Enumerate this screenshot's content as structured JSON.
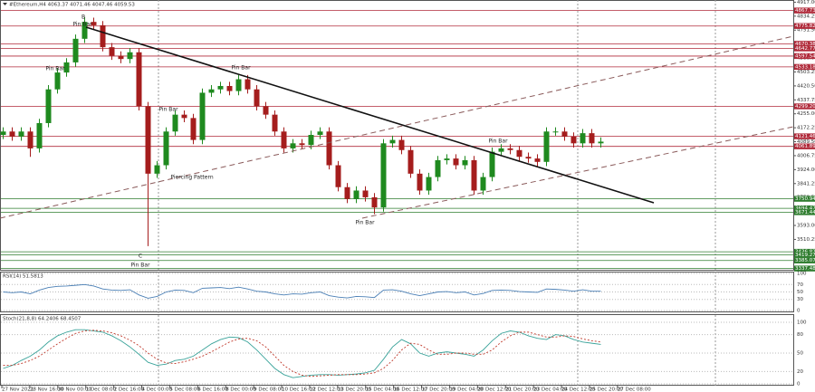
{
  "chart_data": {
    "type": "candlestick",
    "title": "#Ethereum,H4 4063.37 4071.46 4047.46 4059.53",
    "up_color": "#1f8a1f",
    "down_color": "#a51d1d",
    "open": [
      4130,
      4150,
      4120,
      4150,
      4050,
      4200,
      4400,
      4500,
      4560,
      4700,
      4800,
      4780,
      4650,
      4600,
      4580,
      4620,
      4300,
      3900,
      3950,
      4150,
      4250,
      4230,
      4100,
      4380,
      4400,
      4420,
      4390,
      4460,
      4400,
      4300,
      4250,
      4150,
      4050,
      4080,
      4070,
      4130,
      4150,
      3950,
      3820,
      3750,
      3800,
      3760,
      3700,
      4080,
      4100,
      4040,
      3900,
      3800,
      3880,
      3980,
      3990,
      3950,
      3980,
      3800,
      3880,
      4030,
      4050,
      4040,
      4000,
      3990,
      3970,
      4150,
      4150,
      4120,
      4080,
      4140,
      4080
    ],
    "high": [
      4175,
      4175,
      4175,
      4175,
      4225,
      4425,
      4525,
      4585,
      4725,
      4830,
      4825,
      4805,
      4675,
      4625,
      4645,
      4645,
      4325,
      3975,
      4175,
      4275,
      4275,
      4255,
      4405,
      4425,
      4445,
      4445,
      4485,
      4485,
      4425,
      4325,
      4275,
      4175,
      4105,
      4105,
      4155,
      4175,
      4175,
      3975,
      3845,
      3825,
      3825,
      3785,
      4105,
      4125,
      4125,
      4065,
      3925,
      3905,
      4005,
      4015,
      4015,
      4005,
      4005,
      3905,
      4055,
      4075,
      4075,
      4065,
      4025,
      4015,
      4175,
      4175,
      4175,
      4145,
      4165,
      4165,
      4115
    ],
    "low": [
      4105,
      4095,
      4095,
      4000,
      4025,
      4175,
      4375,
      4475,
      4535,
      4675,
      4755,
      4625,
      4575,
      4555,
      4555,
      4275,
      3470,
      3875,
      3925,
      4125,
      4205,
      4075,
      4075,
      4355,
      4375,
      4365,
      4365,
      4375,
      4275,
      4225,
      4125,
      4025,
      4025,
      4045,
      4045,
      4105,
      3925,
      3795,
      3725,
      3725,
      3735,
      3660,
      3675,
      4055,
      4015,
      3875,
      3775,
      3775,
      3855,
      3955,
      3925,
      3925,
      3775,
      3775,
      3855,
      4005,
      4015,
      3975,
      3965,
      3945,
      3945,
      4125,
      4095,
      4055,
      4055,
      4055,
      4055
    ],
    "close": [
      4150,
      4120,
      4150,
      4050,
      4200,
      4400,
      4500,
      4560,
      4700,
      4800,
      4780,
      4650,
      4600,
      4580,
      4620,
      4300,
      3900,
      3950,
      4150,
      4250,
      4230,
      4100,
      4380,
      4400,
      4420,
      4390,
      4460,
      4400,
      4300,
      4250,
      4150,
      4050,
      4080,
      4070,
      4130,
      4150,
      3950,
      3820,
      3750,
      3800,
      3760,
      3700,
      4080,
      4100,
      4040,
      3900,
      3800,
      3880,
      3980,
      3990,
      3950,
      3980,
      3800,
      3880,
      4030,
      4050,
      4040,
      4000,
      3990,
      3970,
      4150,
      4150,
      4120,
      4080,
      4140,
      4080,
      4090
    ],
    "ylim": [
      3330,
      4930
    ],
    "yticks": [
      {
        "value": 4917,
        "label": "4917.00"
      },
      {
        "value": 4834.25,
        "label": "4834.25"
      },
      {
        "value": 4751.5,
        "label": "4751.50"
      },
      {
        "value": 4668.75,
        "label": "4668.75"
      },
      {
        "value": 4586,
        "label": "4586.00"
      },
      {
        "value": 4503.25,
        "label": "4503.25"
      },
      {
        "value": 4420.5,
        "label": "4420.50"
      },
      {
        "value": 4337.75,
        "label": "4337.75"
      },
      {
        "value": 4255,
        "label": "4255.00"
      },
      {
        "value": 4172.25,
        "label": "4172.25"
      },
      {
        "value": 4089.5,
        "label": "4089.50"
      },
      {
        "value": 4006.75,
        "label": "4006.75"
      },
      {
        "value": 3924,
        "label": "3924.00"
      },
      {
        "value": 3841.25,
        "label": "3841.25"
      },
      {
        "value": 3758.5,
        "label": "3758.50"
      },
      {
        "value": 3675.75,
        "label": "3675.75"
      },
      {
        "value": 3593,
        "label": "3593.00"
      },
      {
        "value": 3510.25,
        "label": "3510.25"
      },
      {
        "value": 3427.5,
        "label": "3427.50"
      }
    ],
    "resistance_color": "#b02a3a",
    "resistance_levels": [
      {
        "value": 4867.73,
        "label": "4867.73"
      },
      {
        "value": 4775.82,
        "label": "4775.82"
      },
      {
        "value": 4670.38,
        "label": "4670.38"
      },
      {
        "value": 4642.77,
        "label": "4642.77"
      },
      {
        "value": 4597.54,
        "label": "4597.54"
      },
      {
        "value": 4533.18,
        "label": "4533.18"
      },
      {
        "value": 4299.2,
        "label": "4299.20"
      },
      {
        "value": 4121.46,
        "label": "4121.46"
      },
      {
        "value": 4061.89,
        "label": "4061.89"
      }
    ],
    "support_color": "#2f7d2f",
    "support_levels": [
      {
        "value": 3750.94,
        "label": "3750.94"
      },
      {
        "value": 3694.47,
        "label": "3694.47"
      },
      {
        "value": 3671.44,
        "label": "3671.44"
      },
      {
        "value": 3436.82,
        "label": "3436.82"
      },
      {
        "value": 3419.27,
        "label": "3419.27"
      },
      {
        "value": 3385.07,
        "label": "3385.07"
      },
      {
        "value": 3337.48,
        "label": "3337.48"
      }
    ],
    "annotations": [
      "B",
      "Pin Bar",
      "Pin Bar",
      "Pin Bar",
      "Pin Bar",
      "Piercing Pattern",
      "C",
      "Pin Bar",
      "Pin Bar",
      "Pin Bar"
    ],
    "time_labels": [
      "27 Nov 2021",
      "28 Nov 16:00",
      "30 Nov 00:00",
      "1 Dec 08:00",
      "2 Dec 16:00",
      "4 Dec 00:00",
      "5 Dec 08:00",
      "6 Dec 16:00",
      "8 Dec 00:00",
      "9 Dec 08:00",
      "10 Dec 16:00",
      "12 Dec 12:00",
      "13 Dec 20:00",
      "15 Dec 04:00",
      "16 Dec 12:00",
      "17 Dec 20:00",
      "19 Dec 04:00",
      "20 Dec 12:00",
      "21 Dec 20:00",
      "23 Dec 04:00",
      "24 Dec 12:00",
      "25 Dec 20:00",
      "27 Dec 08:00"
    ],
    "rsi": {
      "label": "RSI(14) 51.5813",
      "color": "#4a7fb5",
      "ylim": [
        0,
        100
      ],
      "yticks": [
        0,
        30,
        50,
        70,
        100
      ],
      "values": [
        50,
        48,
        50,
        45,
        55,
        62,
        65,
        66,
        68,
        70,
        66,
        58,
        55,
        54,
        56,
        42,
        33,
        38,
        50,
        55,
        54,
        48,
        60,
        61,
        62,
        59,
        63,
        58,
        52,
        50,
        45,
        42,
        45,
        44,
        48,
        50,
        40,
        36,
        34,
        38,
        37,
        35,
        55,
        56,
        52,
        45,
        40,
        45,
        50,
        51,
        48,
        50,
        42,
        46,
        54,
        55,
        54,
        51,
        50,
        49,
        58,
        57,
        55,
        52,
        56,
        52,
        52
      ]
    },
    "stochastic": {
      "label": "Stoch(21,8,8) 64.2406 68.4507",
      "main_color": "#3aa39a",
      "signal_color": "#c0392b",
      "ylim": [
        0,
        100
      ],
      "yticks": [
        0,
        20,
        50,
        80,
        100
      ],
      "main_values": [
        25,
        30,
        38,
        45,
        55,
        68,
        78,
        84,
        88,
        88,
        86,
        84,
        78,
        70,
        60,
        48,
        35,
        30,
        32,
        38,
        40,
        45,
        55,
        65,
        72,
        76,
        75,
        68,
        55,
        40,
        25,
        15,
        10,
        12,
        14,
        15,
        15,
        14,
        15,
        16,
        18,
        22,
        40,
        60,
        72,
        65,
        50,
        45,
        50,
        52,
        50,
        48,
        45,
        55,
        70,
        82,
        86,
        84,
        78,
        74,
        72,
        80,
        78,
        72,
        68,
        66,
        64
      ],
      "signal_values": [
        30,
        30,
        33,
        38,
        45,
        55,
        65,
        74,
        82,
        86,
        87,
        86,
        83,
        78,
        71,
        62,
        50,
        40,
        34,
        33,
        36,
        40,
        45,
        52,
        60,
        68,
        73,
        74,
        70,
        60,
        45,
        30,
        20,
        14,
        12,
        13,
        14,
        15,
        15,
        15,
        16,
        18,
        25,
        38,
        55,
        66,
        64,
        55,
        48,
        48,
        50,
        50,
        48,
        48,
        55,
        68,
        78,
        84,
        84,
        80,
        76,
        76,
        78,
        77,
        73,
        70,
        68
      ]
    }
  }
}
